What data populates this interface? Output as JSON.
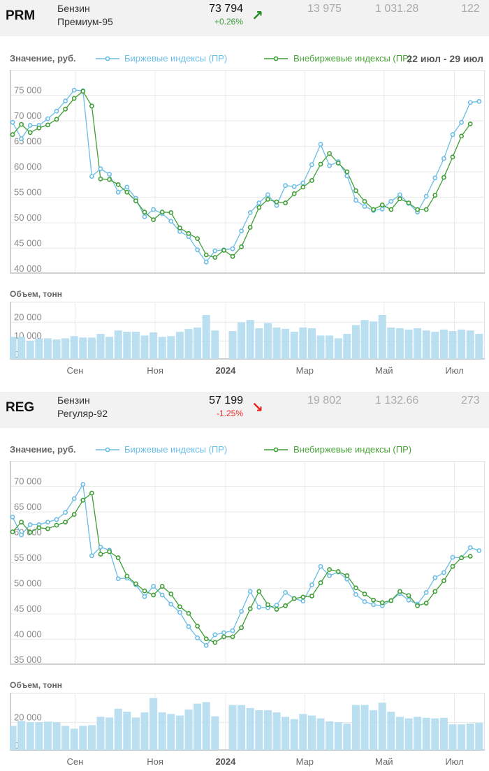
{
  "instruments": [
    {
      "code": "PRM",
      "name_line1": "Бензин",
      "name_line2": "Премиум-95",
      "price": "73 794",
      "change": "+0.26%",
      "direction": "up",
      "arrow": "↗",
      "col1": "13 975",
      "col2": "1 031.28",
      "col3": "122",
      "legend_title": "Значение, руб.",
      "date_range": "22 июл - 29 июл",
      "volume_title": "Объем, тонн"
    },
    {
      "code": "REG",
      "name_line1": "Бензин",
      "name_line2": "Регуляр-92",
      "price": "57 199",
      "change": "-1.25%",
      "direction": "down",
      "arrow": "↘",
      "col1": "19 802",
      "col2": "1 132.66",
      "col3": "273",
      "legend_title": "Значение, руб.",
      "volume_title": "Объем, тонн"
    }
  ],
  "legend": {
    "exchange": "Биржевые индексы (ПР)",
    "otc": "Внебиржевые индексы (ПР)"
  },
  "colors": {
    "exchange": "#6cbde6",
    "otc": "#3f9e35",
    "volume": "#b5ddef",
    "up": "#3a9a3a",
    "down": "#ee2a2a",
    "up_arrow": "#1f8a1f",
    "down_arrow": "#e8201c"
  },
  "month_ticks": [
    {
      "label": "Сен",
      "week": 7.1,
      "bold": false
    },
    {
      "label": "Ноя",
      "week": 16.2,
      "bold": false
    },
    {
      "label": "2024",
      "week": 24.2,
      "bold": true
    },
    {
      "label": "Мар",
      "week": 33.2,
      "bold": false
    },
    {
      "label": "Май",
      "week": 42.2,
      "bold": false
    },
    {
      "label": "Июл",
      "week": 50.2,
      "bold": false
    }
  ],
  "chart_data": [
    {
      "id": "prm-price",
      "type": "line",
      "title": "Значение, руб.",
      "xlabel": "",
      "ylabel": "руб.",
      "ylim": [
        40000,
        80000
      ],
      "yticks": [
        40000,
        45000,
        50000,
        55000,
        60000,
        65000,
        70000,
        75000
      ],
      "ytick_labels": [
        "40 000",
        "45 000",
        "50 000",
        "55 000",
        "60 000",
        "65 000",
        "70 000",
        "75 000"
      ],
      "grid": true,
      "legend": "top",
      "series": [
        {
          "name": "Биржевые индексы (ПР)",
          "values": [
            69700,
            66500,
            69100,
            69100,
            70400,
            71900,
            73900,
            76000,
            75900,
            59100,
            60600,
            59500,
            56000,
            57000,
            54800,
            51200,
            52600,
            51800,
            50300,
            48300,
            47300,
            44700,
            42300,
            44500,
            44700,
            44900,
            48400,
            52000,
            53900,
            55500,
            53400,
            57300,
            57100,
            57800,
            61400,
            65400,
            61200,
            62000,
            59200,
            54400,
            53200,
            52400,
            52700,
            54200,
            55500,
            53800,
            52100,
            55200,
            58800,
            62600,
            67300,
            69700,
            73600,
            73800
          ]
        },
        {
          "name": "Внебиржевые индексы (ПР)",
          "values": [
            67300,
            69300,
            67700,
            68600,
            69200,
            70300,
            72300,
            74400,
            75800,
            72900,
            58600,
            58500,
            57500,
            56000,
            54300,
            52100,
            50600,
            52100,
            52000,
            49000,
            47900,
            46900,
            43700,
            43200,
            44600,
            43400,
            45300,
            49100,
            53000,
            54600,
            54100,
            53900,
            55700,
            57000,
            58300,
            61500,
            63600,
            61700,
            60000,
            56300,
            54200,
            52600,
            53500,
            52600,
            54700,
            53900,
            52600,
            52600,
            55400,
            58900,
            62900,
            67000,
            69400
          ]
        }
      ]
    },
    {
      "id": "prm-volume",
      "type": "bar",
      "title": "Объем, тонн",
      "ylim": [
        0,
        31000
      ],
      "yticks": [
        0,
        10000,
        20000
      ],
      "ytick_labels": [
        "0",
        "10 000",
        "20 000"
      ],
      "grid": true,
      "values": [
        12200,
        12200,
        10100,
        11400,
        11400,
        10800,
        11400,
        12600,
        11800,
        11800,
        13800,
        12200,
        15600,
        14900,
        14900,
        12900,
        14600,
        12200,
        12600,
        14900,
        16400,
        17200,
        23900,
        15600,
        0,
        15300,
        20000,
        21200,
        16800,
        19600,
        17200,
        16500,
        14900,
        17200,
        16800,
        12900,
        12900,
        11400,
        13800,
        18500,
        21200,
        20400,
        23900,
        17200,
        16800,
        16100,
        16800,
        15600,
        14900,
        16100,
        15300,
        16100,
        15600,
        13800
      ]
    },
    {
      "id": "reg-price",
      "type": "line",
      "title": "Значение, руб.",
      "xlabel": "",
      "ylabel": "руб.",
      "ylim": [
        35000,
        75000
      ],
      "yticks": [
        35000,
        40000,
        45000,
        50000,
        55000,
        60000,
        65000,
        70000
      ],
      "ytick_labels": [
        "35 000",
        "40 000",
        "45 000",
        "50 000",
        "55 000",
        "60 000",
        "65 000",
        "70 000"
      ],
      "grid": true,
      "legend": "top",
      "series": [
        {
          "name": "Биржевые индексы (ПР)",
          "values": [
            64000,
            60500,
            62500,
            62500,
            63000,
            63500,
            64900,
            67600,
            70400,
            56400,
            58100,
            57500,
            51900,
            52000,
            50700,
            48400,
            50400,
            48700,
            46900,
            45300,
            42500,
            40300,
            38800,
            40900,
            41300,
            41700,
            45500,
            49400,
            46300,
            46200,
            46700,
            49200,
            48000,
            47500,
            50700,
            54300,
            52500,
            53200,
            51800,
            48800,
            47400,
            46800,
            46600,
            47600,
            49000,
            47700,
            46900,
            49200,
            52100,
            53100,
            56100,
            56000,
            58000,
            57400
          ]
        },
        {
          "name": "Внебиржевые индексы (ПР)",
          "values": [
            61100,
            63000,
            61000,
            61900,
            61700,
            62400,
            63000,
            64500,
            67300,
            68700,
            56700,
            57200,
            56000,
            52400,
            50900,
            49500,
            48700,
            50400,
            48900,
            46400,
            45100,
            42600,
            40100,
            39400,
            40500,
            40500,
            42300,
            46000,
            49400,
            46800,
            45900,
            46600,
            48000,
            48300,
            48500,
            51100,
            53700,
            53300,
            52500,
            50100,
            48900,
            47700,
            47200,
            47600,
            49400,
            48600,
            46600,
            47100,
            49400,
            51500,
            54300,
            56000,
            56300
          ]
        }
      ]
    },
    {
      "id": "reg-volume",
      "type": "bar",
      "title": "Объем, тонн",
      "ylim": [
        0,
        41000
      ],
      "yticks": [
        0,
        20000
      ],
      "ytick_labels": [
        "0",
        "20 000"
      ],
      "grid": true,
      "values": [
        17600,
        21100,
        20200,
        20200,
        20600,
        20200,
        17600,
        15600,
        17600,
        18100,
        24000,
        23500,
        29700,
        27600,
        23500,
        27100,
        37300,
        27100,
        26000,
        24900,
        29200,
        33300,
        34400,
        24400,
        0,
        32400,
        32400,
        30200,
        28700,
        28700,
        27100,
        24000,
        22400,
        26000,
        24900,
        22900,
        20800,
        20200,
        19200,
        32400,
        32400,
        28700,
        34000,
        27600,
        24000,
        22900,
        24000,
        23300,
        22900,
        23300,
        18600,
        18600,
        19200,
        19700
      ]
    }
  ]
}
